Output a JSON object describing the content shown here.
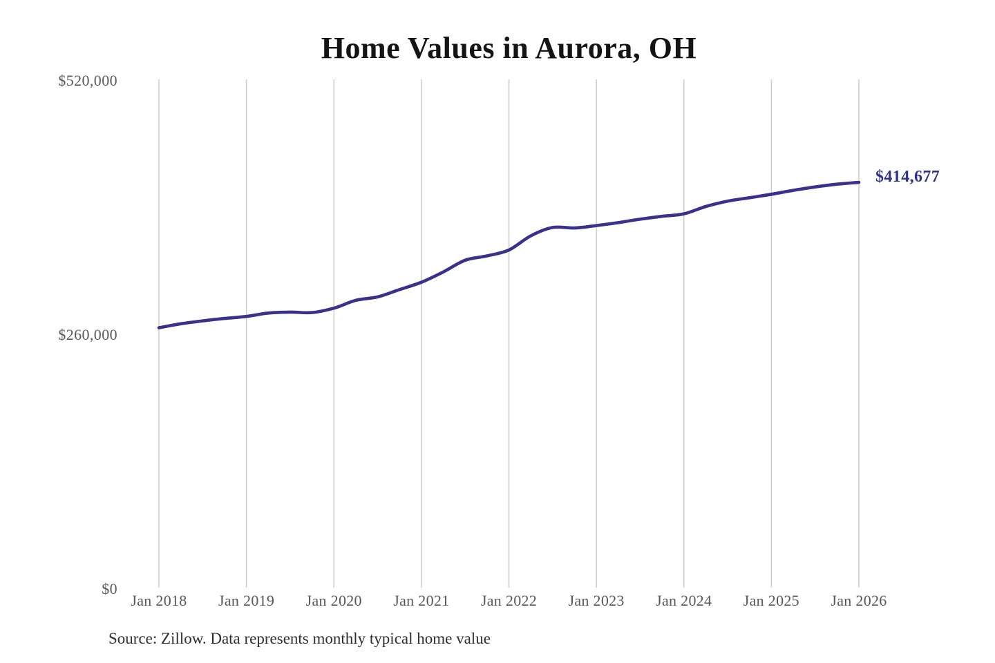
{
  "title": "Home Values in Aurora, OH",
  "end_label": "$414,677",
  "source_note": "Source: Zillow. Data represents monthly typical home value",
  "colors": {
    "line": "#39318b",
    "annotation": "#32308d",
    "grid": "#cccccc",
    "axis_text": "#585858",
    "title_text": "#141414"
  },
  "chart_data": {
    "type": "line",
    "title": "Home Values in Aurora, OH",
    "xlabel": "",
    "ylabel": "",
    "ylim": [
      0,
      520000
    ],
    "grid": "vertical-only",
    "legend": "none",
    "y_ticks": [
      {
        "label": "$0",
        "value": 0
      },
      {
        "label": "$260,000",
        "value": 260000
      },
      {
        "label": "$520,000",
        "value": 520000
      }
    ],
    "x_ticks": [
      {
        "label": "Jan 2018",
        "month": "2018-01"
      },
      {
        "label": "Jan 2019",
        "month": "2019-01"
      },
      {
        "label": "Jan 2020",
        "month": "2020-01"
      },
      {
        "label": "Jan 2021",
        "month": "2021-01"
      },
      {
        "label": "Jan 2022",
        "month": "2022-01"
      },
      {
        "label": "Jan 2023",
        "month": "2023-01"
      },
      {
        "label": "Jan 2024",
        "month": "2024-01"
      },
      {
        "label": "Jan 2025",
        "month": "2025-01"
      },
      {
        "label": "Jan 2026",
        "month": "2026-01"
      }
    ],
    "final_value": 414677,
    "series": [
      {
        "name": "Monthly typical home value",
        "points": [
          [
            "2018-01",
            266000
          ],
          [
            "2018-04",
            270000
          ],
          [
            "2018-07",
            273000
          ],
          [
            "2018-10",
            275500
          ],
          [
            "2019-01",
            277500
          ],
          [
            "2019-04",
            281000
          ],
          [
            "2019-07",
            282000
          ],
          [
            "2019-10",
            281500
          ],
          [
            "2020-01",
            286000
          ],
          [
            "2020-04",
            294000
          ],
          [
            "2020-07",
            297500
          ],
          [
            "2020-10",
            305000
          ],
          [
            "2021-01",
            312500
          ],
          [
            "2021-04",
            323000
          ],
          [
            "2021-07",
            335000
          ],
          [
            "2021-10",
            339500
          ],
          [
            "2022-01",
            345500
          ],
          [
            "2022-04",
            360000
          ],
          [
            "2022-07",
            368500
          ],
          [
            "2022-10",
            368000
          ],
          [
            "2023-01",
            370500
          ],
          [
            "2023-04",
            373500
          ],
          [
            "2023-07",
            377000
          ],
          [
            "2023-10",
            380000
          ],
          [
            "2024-01",
            382500
          ],
          [
            "2024-04",
            390000
          ],
          [
            "2024-07",
            395500
          ],
          [
            "2024-10",
            399000
          ],
          [
            "2025-01",
            402500
          ],
          [
            "2025-04",
            406500
          ],
          [
            "2025-07",
            410000
          ],
          [
            "2025-10",
            412800
          ],
          [
            "2026-01",
            414677
          ]
        ]
      }
    ]
  }
}
